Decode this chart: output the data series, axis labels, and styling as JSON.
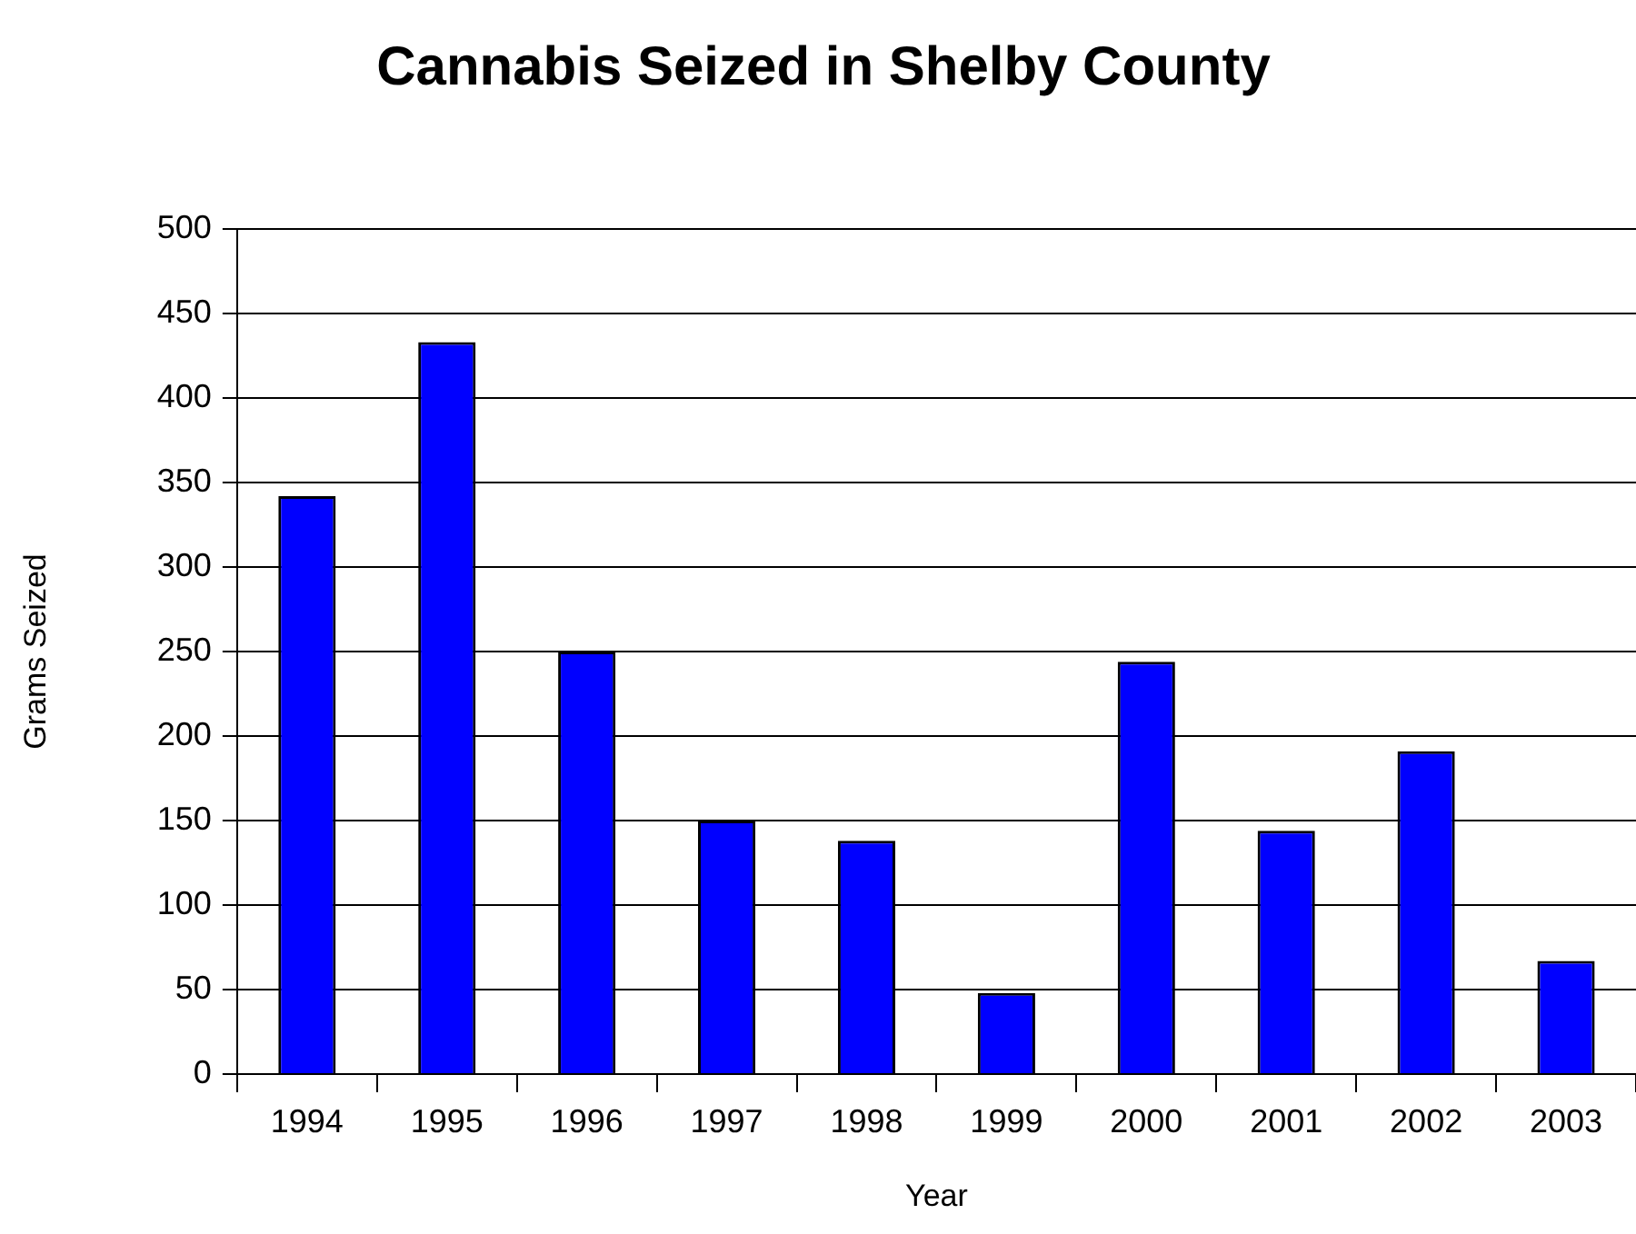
{
  "chart_data": {
    "type": "bar",
    "title": "Cannabis Seized in Shelby County",
    "xlabel": "Year",
    "ylabel": "Grams Seized",
    "categories": [
      "1994",
      "1995",
      "1996",
      "1997",
      "1998",
      "1999",
      "2000",
      "2001",
      "2002",
      "2003"
    ],
    "values": [
      342,
      433,
      250,
      150,
      138,
      48,
      244,
      144,
      191,
      67
    ],
    "color": "#0000ff",
    "ylim": [
      0,
      500
    ],
    "yticks": [
      0,
      50,
      100,
      150,
      200,
      250,
      300,
      350,
      400,
      450,
      500
    ],
    "grid": "y",
    "legend": false
  }
}
